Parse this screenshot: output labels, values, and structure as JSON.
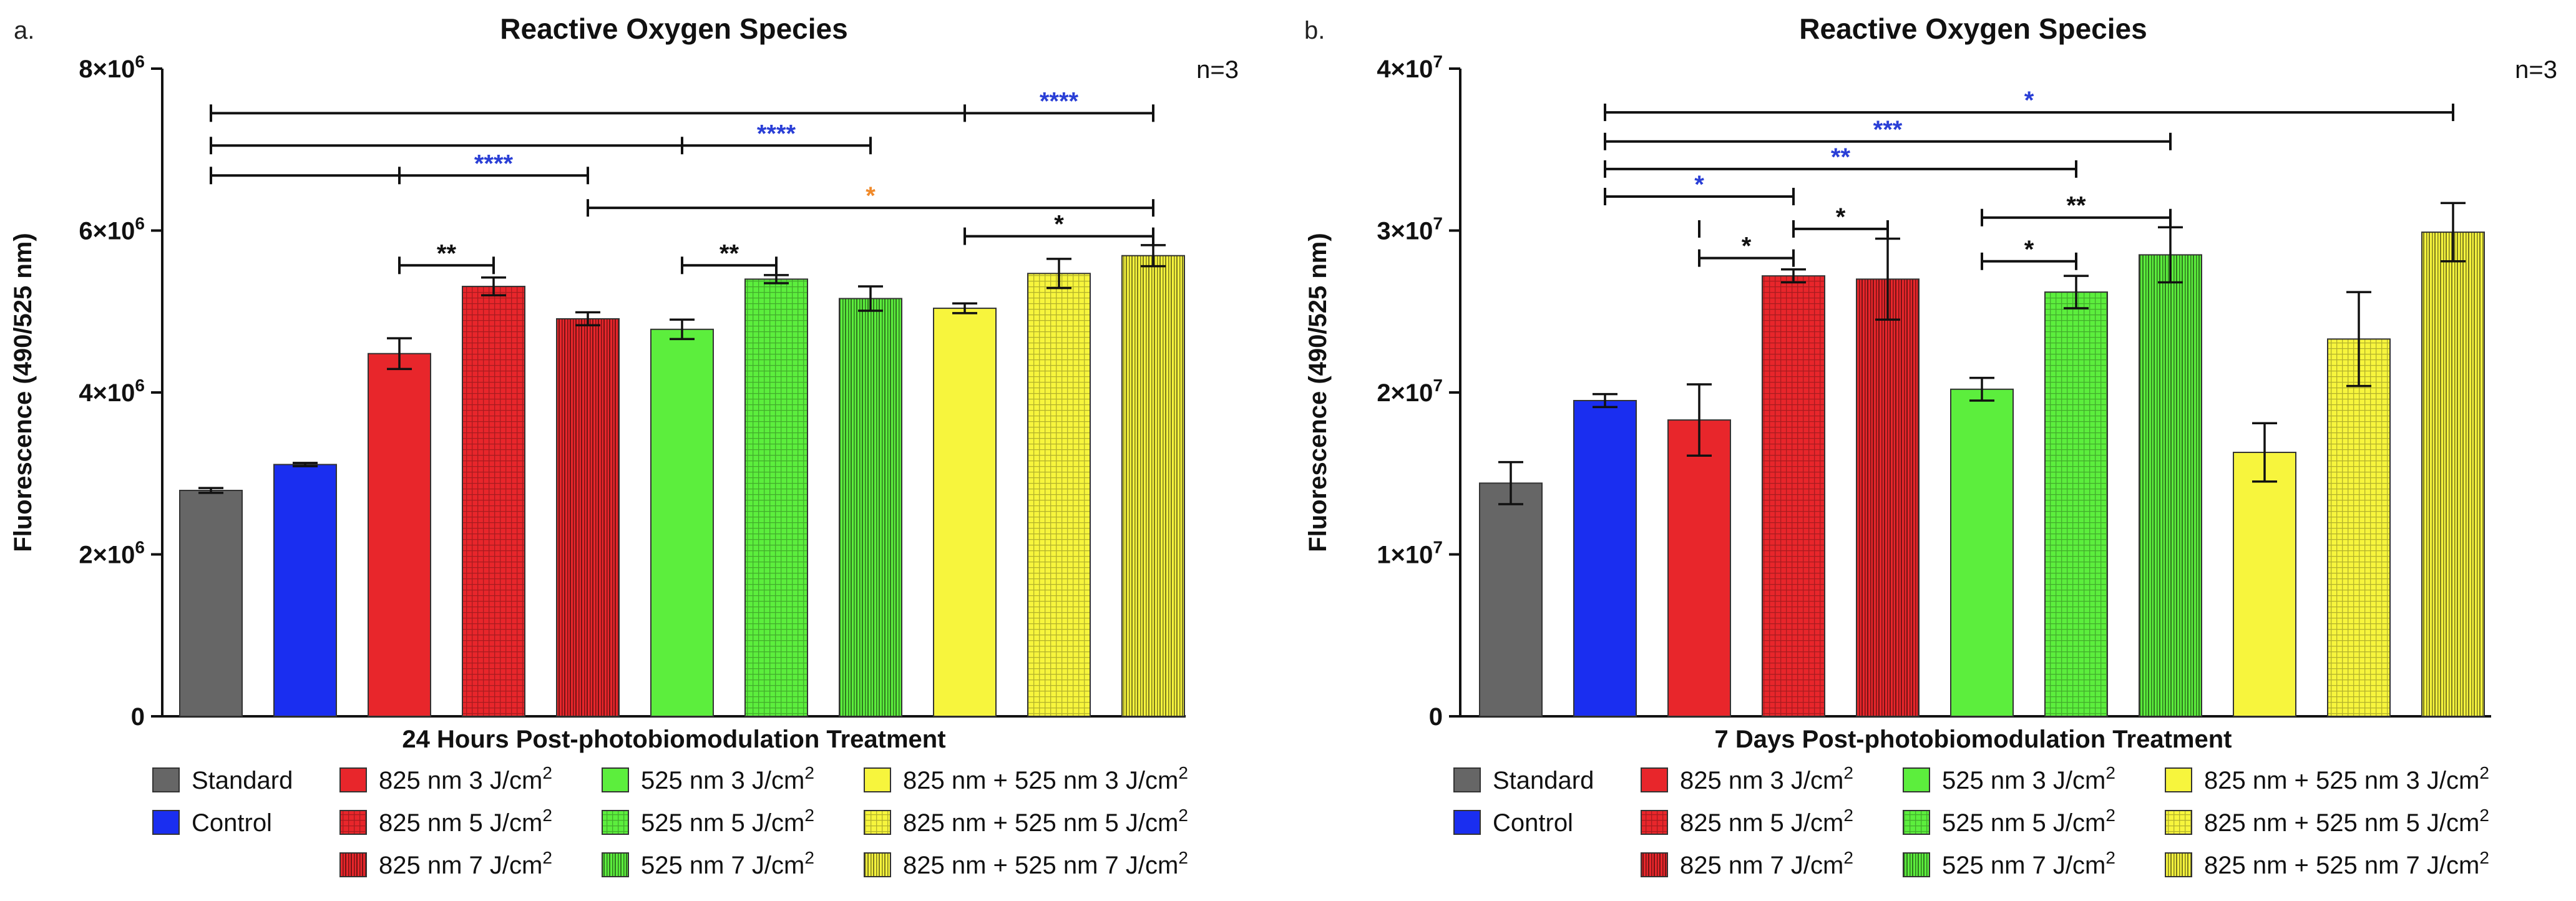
{
  "colors": {
    "standard": "#666666",
    "control": "#1a2ef0",
    "red": "#e8262b",
    "green": "#5cee3d",
    "yellow": "#f7f53d",
    "sig_black": "#111111",
    "sig_blue": "#2a3fd6",
    "sig_orange": "#f08a2a"
  },
  "legend": {
    "items": [
      {
        "label": "Standard",
        "sup": "",
        "color": "#666666",
        "pattern": "solid"
      },
      {
        "label": "Control",
        "sup": "",
        "color": "#1a2ef0",
        "pattern": "solid"
      },
      {
        "label": "825 nm 3 J/cm",
        "sup": "2",
        "color": "#e8262b",
        "pattern": "solid"
      },
      {
        "label": "825 nm 5 J/cm",
        "sup": "2",
        "color": "#e8262b",
        "pattern": "grid"
      },
      {
        "label": "825 nm 7 J/cm",
        "sup": "2",
        "color": "#e8262b",
        "pattern": "vstripe"
      },
      {
        "label": "525 nm 3 J/cm",
        "sup": "2",
        "color": "#5cee3d",
        "pattern": "solid"
      },
      {
        "label": "525 nm 5 J/cm",
        "sup": "2",
        "color": "#5cee3d",
        "pattern": "grid"
      },
      {
        "label": "525 nm 7 J/cm",
        "sup": "2",
        "color": "#5cee3d",
        "pattern": "vstripe"
      },
      {
        "label": "825 nm + 525 nm 3 J/cm",
        "sup": "2",
        "color": "#f7f53d",
        "pattern": "solid"
      },
      {
        "label": "825 nm + 525 nm 5 J/cm",
        "sup": "2",
        "color": "#f7f53d",
        "pattern": "grid"
      },
      {
        "label": "825 nm + 525 nm 7 J/cm",
        "sup": "2",
        "color": "#f7f53d",
        "pattern": "vstripe"
      }
    ]
  },
  "chart_data": [
    {
      "type": "bar",
      "panel_label": "a.",
      "title": "Reactive Oxygen Species",
      "note": "n=3",
      "xlabel": "24 Hours Post-photobiomodulation Treatment",
      "ylabel": "Fluorescence (490/525 nm)",
      "ylim": [
        0,
        8000000
      ],
      "ticks": [
        {
          "value": 0,
          "base": "0",
          "exp": ""
        },
        {
          "value": 2000000,
          "base": "2×10",
          "exp": "6"
        },
        {
          "value": 4000000,
          "base": "4×10",
          "exp": "6"
        },
        {
          "value": 6000000,
          "base": "6×10",
          "exp": "6"
        },
        {
          "value": 8000000,
          "base": "8×10",
          "exp": "6"
        }
      ],
      "categories": [
        "Standard",
        "Control",
        "825 nm 3 J/cm2",
        "825 nm 5 J/cm2",
        "825 nm 7 J/cm2",
        "525 nm 3 J/cm2",
        "525 nm 5 J/cm2",
        "525 nm 7 J/cm2",
        "825 nm + 525 nm 3 J/cm2",
        "825 nm + 525 nm 5 J/cm2",
        "825 nm + 525 nm 7 J/cm2"
      ],
      "values": [
        2790000,
        3110000,
        4480000,
        5310000,
        4910000,
        4780000,
        5400000,
        5160000,
        5040000,
        5470000,
        5690000
      ],
      "errors": [
        30000,
        20000,
        190000,
        110000,
        80000,
        120000,
        50000,
        150000,
        60000,
        180000,
        130000
      ],
      "significance": [
        {
          "from": 0,
          "to": 10,
          "ticks": [
            8
          ],
          "y": 7450000,
          "label": "****",
          "label_at": 9,
          "color": "#2a3fd6"
        },
        {
          "from": 0,
          "to": 7,
          "ticks": [
            5
          ],
          "y": 7050000,
          "label": "****",
          "label_at": 6,
          "color": "#2a3fd6"
        },
        {
          "from": 0,
          "to": 4,
          "ticks": [
            2
          ],
          "y": 6680000,
          "label": "****",
          "label_at": 3,
          "color": "#2a3fd6"
        },
        {
          "from": 4,
          "to": 10,
          "ticks": [],
          "y": 6280000,
          "label": "*",
          "label_at": 7,
          "color": "#f08a2a"
        },
        {
          "from": 8,
          "to": 10,
          "ticks": [],
          "y": 5930000,
          "label": "*",
          "label_at": 9,
          "color": "#111111"
        },
        {
          "from": 2,
          "to": 3,
          "ticks": [],
          "y": 5570000,
          "label": "**",
          "label_at": 2.5,
          "color": "#111111"
        },
        {
          "from": 5,
          "to": 6,
          "ticks": [],
          "y": 5570000,
          "label": "**",
          "label_at": 5.5,
          "color": "#111111"
        }
      ]
    },
    {
      "type": "bar",
      "panel_label": "b.",
      "title": "Reactive Oxygen Species",
      "note": "n=3",
      "xlabel": "7 Days Post-photobiomodulation Treatment",
      "ylabel": "Fluorescence (490/525 nm)",
      "ylim": [
        0,
        40000000
      ],
      "ticks": [
        {
          "value": 0,
          "base": "0",
          "exp": ""
        },
        {
          "value": 10000000,
          "base": "1×10",
          "exp": "7"
        },
        {
          "value": 20000000,
          "base": "2×10",
          "exp": "7"
        },
        {
          "value": 30000000,
          "base": "3×10",
          "exp": "7"
        },
        {
          "value": 40000000,
          "base": "4×10",
          "exp": "7"
        }
      ],
      "categories": [
        "Standard",
        "Control",
        "825 nm 3 J/cm2",
        "825 nm 5 J/cm2",
        "825 nm 7 J/cm2",
        "525 nm 3 J/cm2",
        "525 nm 5 J/cm2",
        "525 nm 7 J/cm2",
        "825 nm + 525 nm 3 J/cm2",
        "825 nm + 525 nm 5 J/cm2",
        "825 nm + 525 nm 7 J/cm2"
      ],
      "values": [
        14400000,
        19500000,
        18300000,
        27200000,
        27000000,
        20200000,
        26200000,
        28500000,
        16300000,
        23300000,
        29900000
      ],
      "errors": [
        1300000,
        400000,
        2200000,
        400000,
        2500000,
        700000,
        1000000,
        1700000,
        1800000,
        2900000,
        1800000
      ],
      "significance": [
        {
          "from": 1,
          "to": 10,
          "ticks": [],
          "y": 37300000,
          "label": "*",
          "label_at": 5.5,
          "color": "#2a3fd6"
        },
        {
          "from": 1,
          "to": 7,
          "ticks": [],
          "y": 35500000,
          "label": "***",
          "label_at": 4,
          "color": "#2a3fd6"
        },
        {
          "from": 1,
          "to": 6,
          "ticks": [],
          "y": 33800000,
          "label": "**",
          "label_at": 3.5,
          "color": "#2a3fd6"
        },
        {
          "from": 1,
          "to": 3,
          "ticks": [],
          "y": 32100000,
          "label": "*",
          "label_at": 2,
          "color": "#2a3fd6"
        },
        {
          "from": 3,
          "to": 4,
          "ticks": [
            2
          ],
          "y": 30100000,
          "label": "*",
          "label_at": 3.5,
          "color": "#111111"
        },
        {
          "from": 2,
          "to": 3,
          "ticks": [],
          "y": 28300000,
          "label": "*",
          "label_at": 2.5,
          "color": "#111111"
        },
        {
          "from": 5,
          "to": 7,
          "ticks": [],
          "y": 30800000,
          "label": "**",
          "label_at": 6,
          "color": "#111111"
        },
        {
          "from": 5,
          "to": 6,
          "ticks": [],
          "y": 28100000,
          "label": "*",
          "label_at": 5.5,
          "color": "#111111"
        }
      ]
    }
  ]
}
